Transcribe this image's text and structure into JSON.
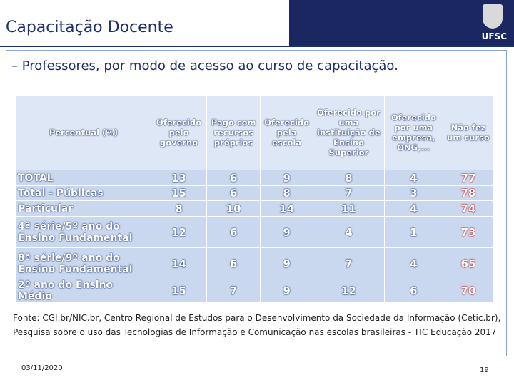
{
  "header": {
    "title": "Capacitação Docente",
    "logo": "UFSC"
  },
  "subtitle": "– Professores, por modo de acesso ao curso de capacitação.",
  "table": {
    "columns": [
      "Percentual (%)",
      "Oferecido pelo governo",
      "Pago com recursos próprios",
      "Oferecido pela escola",
      "Oferecido por uma instituição de Ensino Superior",
      "Oferecido por uma empresa, ONG,...",
      "Não fez um curso"
    ],
    "rows": [
      [
        "TOTAL",
        13,
        6,
        9,
        8,
        4,
        77
      ],
      [
        "Total - Públicas",
        15,
        6,
        8,
        7,
        3,
        78
      ],
      [
        "Particular",
        8,
        10,
        14,
        11,
        4,
        74
      ],
      [
        "4ª série/5º ano do Ensino Fundamental",
        12,
        6,
        9,
        4,
        1,
        73
      ],
      [
        "8ª série/9º ano do Ensino Fundamental",
        14,
        6,
        9,
        7,
        4,
        65
      ],
      [
        "2º ano do Ensino Médio",
        15,
        7,
        9,
        12,
        6,
        70
      ]
    ]
  },
  "footer": {
    "source": "Fonte: CGI.br/NIC.br, Centro Regional de Estudos para o Desenvolvimento da Sociedade da Informação (Cetic.br), Pesquisa sobre o uso das Tecnologias de Informação e Comunicação nas escolas brasileiras - TIC Educação 2017",
    "date": "03/11/2020",
    "page": 19
  }
}
